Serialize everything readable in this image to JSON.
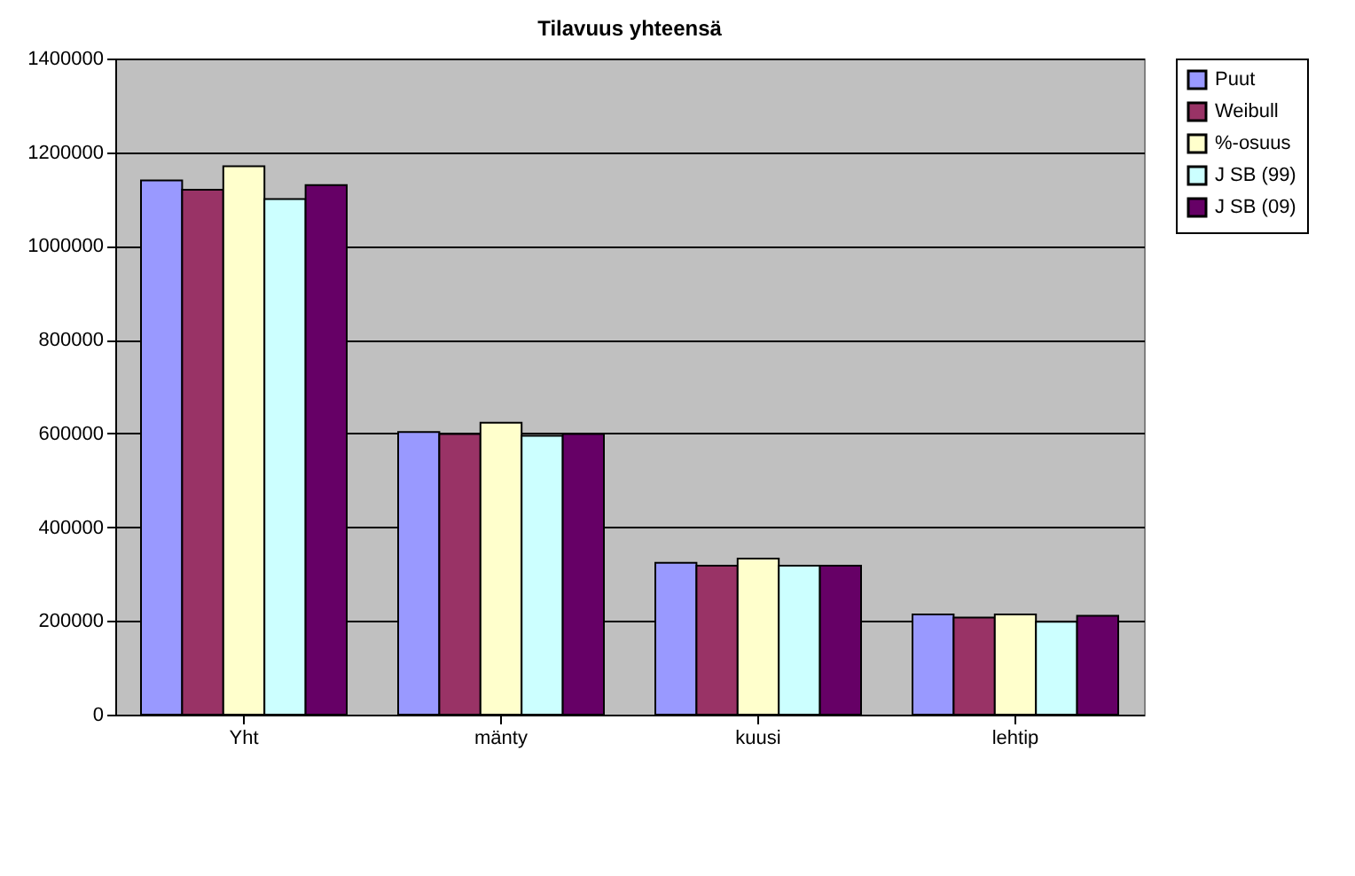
{
  "chart_data": {
    "type": "bar",
    "title": "Tilavuus yhteensä",
    "categories": [
      "Yht",
      "mänty",
      "kuusi",
      "lehtip"
    ],
    "series": [
      {
        "name": "Puut",
        "color": "#9999ff",
        "values": [
          1140000,
          603000,
          324000,
          214000
        ]
      },
      {
        "name": "Weibull",
        "color": "#993366",
        "values": [
          1120000,
          599000,
          318000,
          207000
        ]
      },
      {
        "name": "%-osuus",
        "color": "#ffffcc",
        "values": [
          1170000,
          623000,
          333000,
          214000
        ]
      },
      {
        "name": "J SB (99)",
        "color": "#ccffff",
        "values": [
          1100000,
          595000,
          318000,
          198000
        ]
      },
      {
        "name": "J SB (09)",
        "color": "#660066",
        "values": [
          1130000,
          599000,
          318000,
          211000
        ]
      }
    ],
    "ylim": [
      0,
      1400000
    ],
    "yticks": [
      0,
      200000,
      400000,
      600000,
      800000,
      1000000,
      1200000,
      1400000
    ],
    "grid": "y",
    "legend": "right"
  }
}
